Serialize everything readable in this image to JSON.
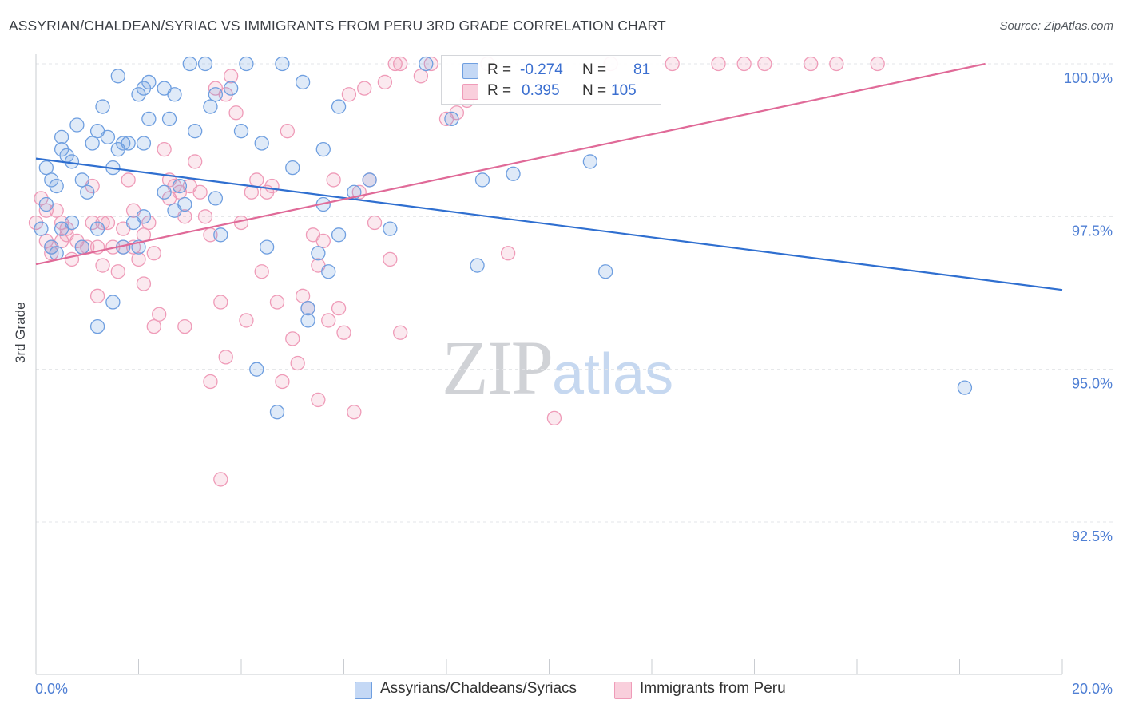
{
  "title": "ASSYRIAN/CHALDEAN/SYRIAC VS IMMIGRANTS FROM PERU 3RD GRADE CORRELATION CHART",
  "source": "Source: ZipAtlas.com",
  "watermark": {
    "zip": "ZIP",
    "atlas": "atlas"
  },
  "legend": {
    "r_label": "R =",
    "n_label": "N =",
    "rows": [
      {
        "r": "-0.274",
        "n": "81"
      },
      {
        "r": "0.395",
        "n": "105"
      }
    ]
  },
  "chart_data": {
    "type": "scatter",
    "title": "ASSYRIAN/CHALDEAN/SYRIAC VS IMMIGRANTS FROM PERU 3RD GRADE CORRELATION CHART",
    "xlabel": "",
    "ylabel": "3rd Grade",
    "xlim": [
      0,
      20
    ],
    "ylim": [
      90,
      100.2
    ],
    "x_tick_labels": [
      "0.0%",
      "20.0%"
    ],
    "y_tick_values": [
      92.5,
      95.0,
      97.5,
      100.0
    ],
    "y_tick_labels": [
      "92.5%",
      "95.0%",
      "97.5%",
      "100.0%"
    ],
    "grid": true,
    "legend_position": "top-center",
    "colors": {
      "blue": "#6f9fe0",
      "pink": "#ef9bb8",
      "blue_line": "#2f6fd0",
      "pink_line": "#e06a98"
    },
    "series": [
      {
        "name": "Assyrians/Chaldeans/Syriacs",
        "color": "#6f9fe0",
        "trend": [
          [
            0.0,
            98.45
          ],
          [
            20.0,
            96.3
          ]
        ],
        "points": [
          [
            0.1,
            97.3
          ],
          [
            0.2,
            98.3
          ],
          [
            0.3,
            98.1
          ],
          [
            0.4,
            98.0
          ],
          [
            0.3,
            97.0
          ],
          [
            0.5,
            98.8
          ],
          [
            0.5,
            98.6
          ],
          [
            0.6,
            98.5
          ],
          [
            0.7,
            98.4
          ],
          [
            0.8,
            99.0
          ],
          [
            0.7,
            97.4
          ],
          [
            0.9,
            98.1
          ],
          [
            1.0,
            97.9
          ],
          [
            1.1,
            98.7
          ],
          [
            1.2,
            98.9
          ],
          [
            1.3,
            99.3
          ],
          [
            1.4,
            98.8
          ],
          [
            1.5,
            98.3
          ],
          [
            1.6,
            98.6
          ],
          [
            1.7,
            98.7
          ],
          [
            1.8,
            98.7
          ],
          [
            1.6,
            99.8
          ],
          [
            1.9,
            97.4
          ],
          [
            1.7,
            97.0
          ],
          [
            2.0,
            99.5
          ],
          [
            2.1,
            99.6
          ],
          [
            2.2,
            99.7
          ],
          [
            2.1,
            98.7
          ],
          [
            2.2,
            99.1
          ],
          [
            2.5,
            99.6
          ],
          [
            2.6,
            99.1
          ],
          [
            2.7,
            99.5
          ],
          [
            2.8,
            98.0
          ],
          [
            2.7,
            97.6
          ],
          [
            2.5,
            97.9
          ],
          [
            3.0,
            100.0
          ],
          [
            3.1,
            98.9
          ],
          [
            3.3,
            100.0
          ],
          [
            3.4,
            99.3
          ],
          [
            3.5,
            99.5
          ],
          [
            3.5,
            97.8
          ],
          [
            3.6,
            97.2
          ],
          [
            3.8,
            99.6
          ],
          [
            4.0,
            98.9
          ],
          [
            4.1,
            100.0
          ],
          [
            4.4,
            98.7
          ],
          [
            4.5,
            97.0
          ],
          [
            4.8,
            100.0
          ],
          [
            5.0,
            98.3
          ],
          [
            5.2,
            99.7
          ],
          [
            5.3,
            95.8
          ],
          [
            5.3,
            96.0
          ],
          [
            5.6,
            97.7
          ],
          [
            5.5,
            96.9
          ],
          [
            5.6,
            98.6
          ],
          [
            5.7,
            96.6
          ],
          [
            5.9,
            99.3
          ],
          [
            5.9,
            97.2
          ],
          [
            6.2,
            97.9
          ],
          [
            6.5,
            98.1
          ],
          [
            6.9,
            97.3
          ],
          [
            7.6,
            100.0
          ],
          [
            8.1,
            99.1
          ],
          [
            8.6,
            96.7
          ],
          [
            8.7,
            98.1
          ],
          [
            9.3,
            98.2
          ],
          [
            10.8,
            98.4
          ],
          [
            11.1,
            96.6
          ],
          [
            2.1,
            97.5
          ],
          [
            1.5,
            96.1
          ],
          [
            1.2,
            95.7
          ],
          [
            4.3,
            95.0
          ],
          [
            4.7,
            94.3
          ],
          [
            18.1,
            94.7
          ],
          [
            0.5,
            97.3
          ],
          [
            0.9,
            97.0
          ],
          [
            1.2,
            97.3
          ],
          [
            0.2,
            97.7
          ],
          [
            0.4,
            96.9
          ],
          [
            2.0,
            97.0
          ],
          [
            2.9,
            97.7
          ]
        ]
      },
      {
        "name": "Immigrants from Peru",
        "color": "#ef9bb8",
        "trend": [
          [
            0.0,
            96.72
          ],
          [
            18.5,
            100.0
          ]
        ],
        "points": [
          [
            0.0,
            97.4
          ],
          [
            0.1,
            97.8
          ],
          [
            0.2,
            97.6
          ],
          [
            0.2,
            97.1
          ],
          [
            0.3,
            97.0
          ],
          [
            0.3,
            96.9
          ],
          [
            0.4,
            97.6
          ],
          [
            0.5,
            97.4
          ],
          [
            0.5,
            97.1
          ],
          [
            0.6,
            97.2
          ],
          [
            0.7,
            96.8
          ],
          [
            0.8,
            97.1
          ],
          [
            0.9,
            97.0
          ],
          [
            1.0,
            97.0
          ],
          [
            1.1,
            98.0
          ],
          [
            1.1,
            97.4
          ],
          [
            1.2,
            97.0
          ],
          [
            1.2,
            96.2
          ],
          [
            1.3,
            96.7
          ],
          [
            1.3,
            97.4
          ],
          [
            1.4,
            97.4
          ],
          [
            1.5,
            97.0
          ],
          [
            1.6,
            96.6
          ],
          [
            1.7,
            97.3
          ],
          [
            1.7,
            97.0
          ],
          [
            1.8,
            98.1
          ],
          [
            1.9,
            97.0
          ],
          [
            2.0,
            96.8
          ],
          [
            2.1,
            97.2
          ],
          [
            2.1,
            96.4
          ],
          [
            2.2,
            97.4
          ],
          [
            2.3,
            96.9
          ],
          [
            2.4,
            95.9
          ],
          [
            2.5,
            98.6
          ],
          [
            2.6,
            98.1
          ],
          [
            2.6,
            97.8
          ],
          [
            2.7,
            98.0
          ],
          [
            2.8,
            97.9
          ],
          [
            2.9,
            97.5
          ],
          [
            3.0,
            98.0
          ],
          [
            3.1,
            98.4
          ],
          [
            3.2,
            97.9
          ],
          [
            3.3,
            97.5
          ],
          [
            3.4,
            97.2
          ],
          [
            3.5,
            99.6
          ],
          [
            3.6,
            96.1
          ],
          [
            3.7,
            99.5
          ],
          [
            3.8,
            99.8
          ],
          [
            3.9,
            99.2
          ],
          [
            4.0,
            97.4
          ],
          [
            4.1,
            95.8
          ],
          [
            4.2,
            97.9
          ],
          [
            4.3,
            98.1
          ],
          [
            4.4,
            96.6
          ],
          [
            4.5,
            97.9
          ],
          [
            4.6,
            98.0
          ],
          [
            4.7,
            96.1
          ],
          [
            4.8,
            94.8
          ],
          [
            4.9,
            98.9
          ],
          [
            5.0,
            95.5
          ],
          [
            5.1,
            95.1
          ],
          [
            5.2,
            96.2
          ],
          [
            5.3,
            96.0
          ],
          [
            5.4,
            97.2
          ],
          [
            5.5,
            96.7
          ],
          [
            5.6,
            97.1
          ],
          [
            5.7,
            95.8
          ],
          [
            5.8,
            98.1
          ],
          [
            5.9,
            96.0
          ],
          [
            6.0,
            95.6
          ],
          [
            6.1,
            99.5
          ],
          [
            6.2,
            94.3
          ],
          [
            6.3,
            97.9
          ],
          [
            6.4,
            99.6
          ],
          [
            6.5,
            98.1
          ],
          [
            6.6,
            97.4
          ],
          [
            6.8,
            99.7
          ],
          [
            6.9,
            96.8
          ],
          [
            7.0,
            100.0
          ],
          [
            7.1,
            95.6
          ],
          [
            7.5,
            99.8
          ],
          [
            7.7,
            100.0
          ],
          [
            8.0,
            99.1
          ],
          [
            8.2,
            99.2
          ],
          [
            8.4,
            99.4
          ],
          [
            8.8,
            100.0
          ],
          [
            9.2,
            96.9
          ],
          [
            10.1,
            94.2
          ],
          [
            11.2,
            100.0
          ],
          [
            12.4,
            100.0
          ],
          [
            13.3,
            100.0
          ],
          [
            13.8,
            100.0
          ],
          [
            14.2,
            100.0
          ],
          [
            15.1,
            100.0
          ],
          [
            15.6,
            100.0
          ],
          [
            16.4,
            100.0
          ],
          [
            1.9,
            97.6
          ],
          [
            2.3,
            95.7
          ],
          [
            2.9,
            95.7
          ],
          [
            3.7,
            95.2
          ],
          [
            3.4,
            94.8
          ],
          [
            3.6,
            93.2
          ],
          [
            5.5,
            94.5
          ],
          [
            0.6,
            97.3
          ],
          [
            7.1,
            100.0
          ]
        ]
      }
    ]
  }
}
